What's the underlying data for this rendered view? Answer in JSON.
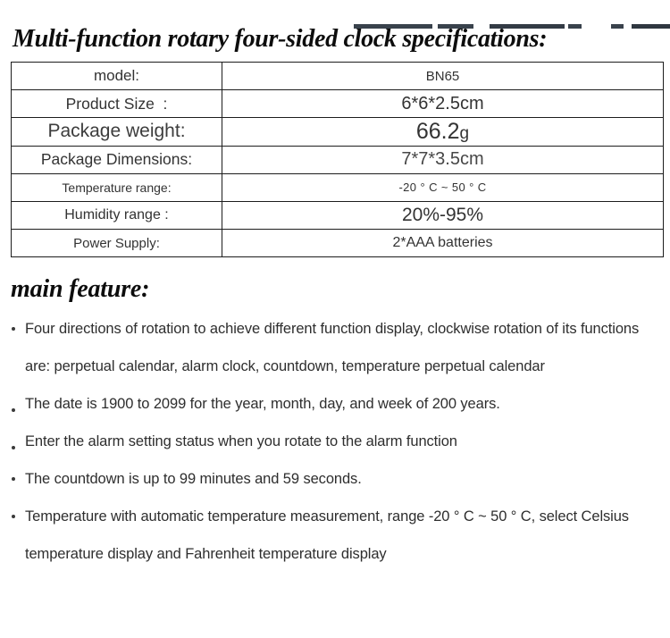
{
  "header": {
    "title": "Multi-function rotary four-sided clock specifications:"
  },
  "spec_table": {
    "rows": [
      {
        "label": "model:",
        "value": "BN65"
      },
      {
        "label": "Product Size  :",
        "value": "6*6*2.5cm"
      },
      {
        "label": "Package weight:",
        "value": "66.2",
        "value_suffix": "g"
      },
      {
        "label": "Package Dimensions:",
        "value": "7*7*3.5cm"
      },
      {
        "label": "Temperature range:",
        "value": "-20 ° C ~ 50 ° C"
      },
      {
        "label": "Humidity range :",
        "value": "20%-95%"
      },
      {
        "label": "Power Supply:",
        "value": "2*AAA batteries"
      }
    ]
  },
  "features": {
    "heading": "main feature:",
    "items": [
      {
        "lines": [
          "Four directions of rotation to achieve different function display, clockwise rotation of its functions",
          "are: perpetual calendar, alarm clock, countdown, temperature perpetual calendar"
        ]
      },
      {
        "lines": [
          "The date is 1900 to 2099 for the year, month, day, and week of 200 years."
        ]
      },
      {
        "lines": [
          "Enter the alarm setting status when you rotate to the alarm function"
        ]
      },
      {
        "lines": [
          "The countdown is up to 99 minutes and 59 seconds."
        ]
      },
      {
        "lines": [
          "Temperature with automatic temperature measurement, range -20 ° C ~ 50 ° C, select Celsius",
          "temperature display and Fahrenheit temperature display"
        ]
      }
    ]
  }
}
